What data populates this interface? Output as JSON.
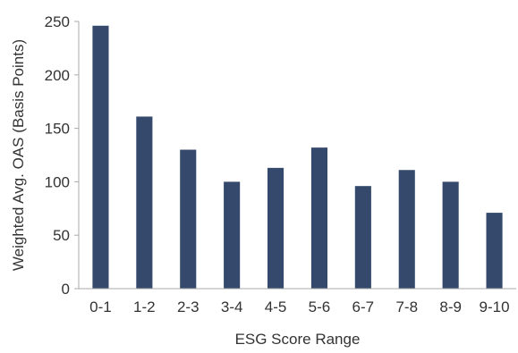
{
  "chart_data": {
    "type": "bar",
    "title": "",
    "xlabel": "ESG Score Range",
    "ylabel": "Weighted Avg. OAS (Basis Points)",
    "categories": [
      "0-1",
      "1-2",
      "2-3",
      "3-4",
      "4-5",
      "5-6",
      "6-7",
      "7-8",
      "8-9",
      "9-10"
    ],
    "values": [
      246,
      161,
      130,
      100,
      113,
      132,
      96,
      111,
      100,
      71
    ],
    "ylim": [
      0,
      250
    ],
    "yticks": [
      0,
      50,
      100,
      150,
      200,
      250
    ],
    "grid": false,
    "legend": "none",
    "bar_color": "#34496b",
    "axis_color": "#aaaaaa",
    "text_color": "#333333"
  }
}
